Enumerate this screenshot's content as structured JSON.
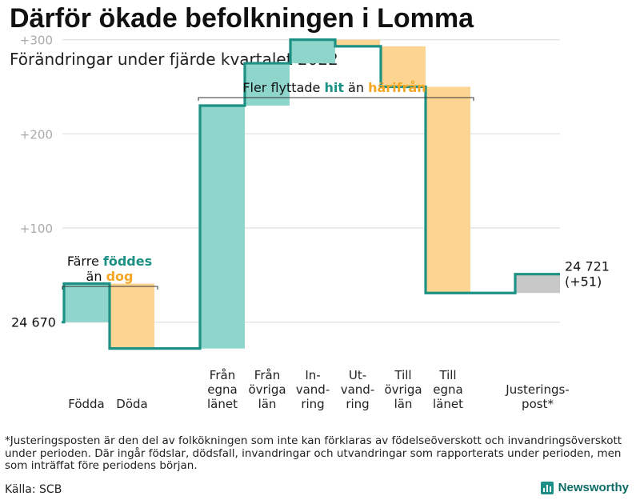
{
  "title": "Därför ökade befolkningen i Lomma",
  "subtitle": "Förändringar under fjärde kvartalet 2022",
  "chart_data": {
    "type": "waterfall",
    "baseline_label": "24 670",
    "baseline_value": 0,
    "end_label_lines": [
      "24 721",
      "(+51)"
    ],
    "ylim": [
      -30,
      315
    ],
    "y_ticks": [
      {
        "value": 100,
        "label": "+100"
      },
      {
        "value": 200,
        "label": "+200"
      },
      {
        "value": 300,
        "label": "+300"
      }
    ],
    "steps": [
      {
        "key": "fodda",
        "label_lines": [
          "Födda"
        ],
        "delta": 41,
        "kind": "in"
      },
      {
        "key": "doda",
        "label_lines": [
          "Döda"
        ],
        "delta": -69,
        "kind": "out"
      },
      {
        "key": "fran_egna",
        "label_lines": [
          "Från",
          "egna",
          "länet"
        ],
        "delta": 258,
        "kind": "in"
      },
      {
        "key": "fran_ovriga",
        "label_lines": [
          "Från",
          "övriga",
          "län"
        ],
        "delta": 45,
        "kind": "in"
      },
      {
        "key": "invandring",
        "label_lines": [
          "In-",
          "vand-",
          "ring"
        ],
        "delta": 25,
        "kind": "in"
      },
      {
        "key": "utvandring",
        "label_lines": [
          "Ut-",
          "vand-",
          "ring"
        ],
        "delta": -7,
        "kind": "out"
      },
      {
        "key": "till_ovriga",
        "label_lines": [
          "Till",
          "övriga",
          "län"
        ],
        "delta": -43,
        "kind": "out"
      },
      {
        "key": "till_egna",
        "label_lines": [
          "Till",
          "egna",
          "länet"
        ],
        "delta": -219,
        "kind": "out"
      },
      {
        "key": "justering",
        "label_lines": [
          "Justerings-",
          "post*"
        ],
        "delta": 20,
        "kind": "adjust"
      }
    ],
    "colors": {
      "in": "#8ed5cb",
      "out": "#fcd592",
      "adjust": "#c8c8c8",
      "line": "#1c9184",
      "grid": "#e5e5e5"
    },
    "annotations": {
      "births": {
        "prefix": "Färre ",
        "highlight_in": "föddes",
        "line2_prefix": "än ",
        "highlight_out": "dog"
      },
      "moves": {
        "prefix": "Fler flyttade ",
        "highlight_in": "hit",
        "middle": " än ",
        "highlight_out": "härifrån"
      }
    }
  },
  "footnote": "*Justeringsposten är den del av folkökningen som inte kan förklaras av födelseöverskott och invandringsöverskott under perioden. Där ingår födslar, dödsfall, invandringar och utvandringar som rapporterats under perioden, men som inträffat före periodens början.",
  "source": "Källa: SCB",
  "brand": "Newsworthy"
}
